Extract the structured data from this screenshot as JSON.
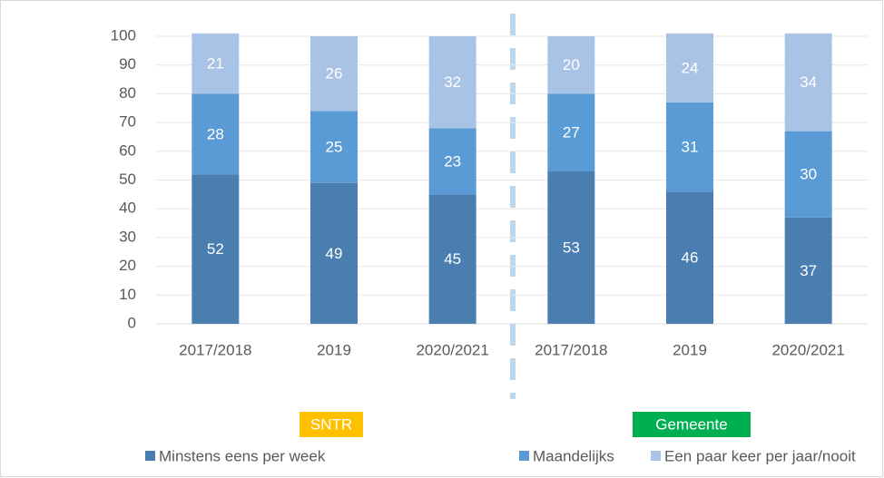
{
  "chart_data": {
    "type": "stacked_bar",
    "categories": [
      "2017/2018",
      "2019",
      "2020/2021",
      "2017/2018",
      "2019",
      "2020/2021"
    ],
    "series": [
      {
        "name": "Minstens eens per week",
        "color": "#4a7db0",
        "values": [
          52,
          49,
          45,
          53,
          46,
          37
        ]
      },
      {
        "name": "Maandelijks",
        "color": "#5b9bd5",
        "values": [
          28,
          25,
          23,
          27,
          31,
          30
        ]
      },
      {
        "name": "Een paar keer per jaar/nooit",
        "color": "#a9c3e6",
        "values": [
          21,
          26,
          32,
          20,
          24,
          34
        ]
      }
    ],
    "ylim": [
      0,
      100
    ],
    "yticks": [
      0,
      10,
      20,
      30,
      40,
      50,
      60,
      70,
      80,
      90,
      100
    ],
    "grid": true,
    "legend": "bottom",
    "annotations": [
      {
        "text": "SNTR",
        "color": "#ffc000"
      },
      {
        "text": "Gemeente",
        "color": "#00b050"
      }
    ]
  }
}
